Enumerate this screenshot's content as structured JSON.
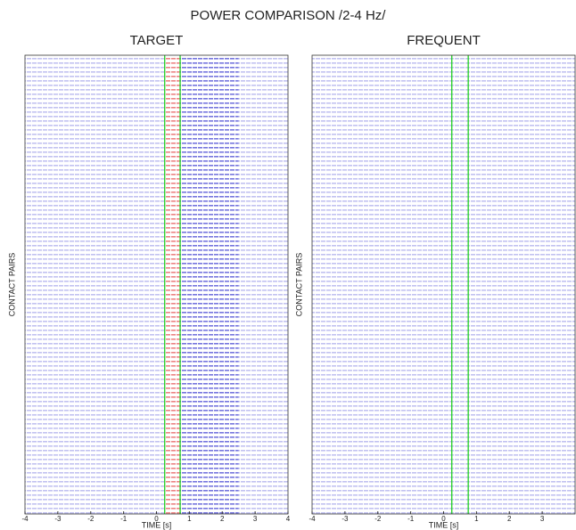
{
  "title": "POWER COMPARISON /2-4 Hz/",
  "chart_data": [
    {
      "type": "heatmap",
      "title": "TARGET",
      "xlabel": "TIME [s]",
      "ylabel": "CONTACT PAIRS",
      "xlim": [
        -4,
        4
      ],
      "xticks": [
        -4,
        -3,
        -2,
        -1,
        0,
        1,
        2,
        3,
        4
      ],
      "regions": [
        {
          "x": [
            -4,
            0.25
          ],
          "color": "#9a9ae8"
        },
        {
          "x": [
            0.25,
            0.72
          ],
          "color": "#e03030"
        },
        {
          "x": [
            0.72,
            2.5
          ],
          "color": "#1a1ac8"
        },
        {
          "x": [
            2.5,
            4
          ],
          "color": "#9a9ae8"
        }
      ],
      "vlines": [
        0.25,
        0.72
      ],
      "vline_color": "#20d020"
    },
    {
      "type": "heatmap",
      "title": "FREQUENT",
      "xlabel": "TIME [s]",
      "ylabel": "CONTACT PAIRS",
      "xlim": [
        -4,
        4
      ],
      "xticks": [
        -4,
        -3,
        -2,
        -1,
        0,
        1,
        2,
        3
      ],
      "regions": [
        {
          "x": [
            -4,
            4
          ],
          "color": "#9a9ae8"
        }
      ],
      "vlines": [
        0.25,
        0.75
      ],
      "vline_color": "#20d020"
    }
  ]
}
